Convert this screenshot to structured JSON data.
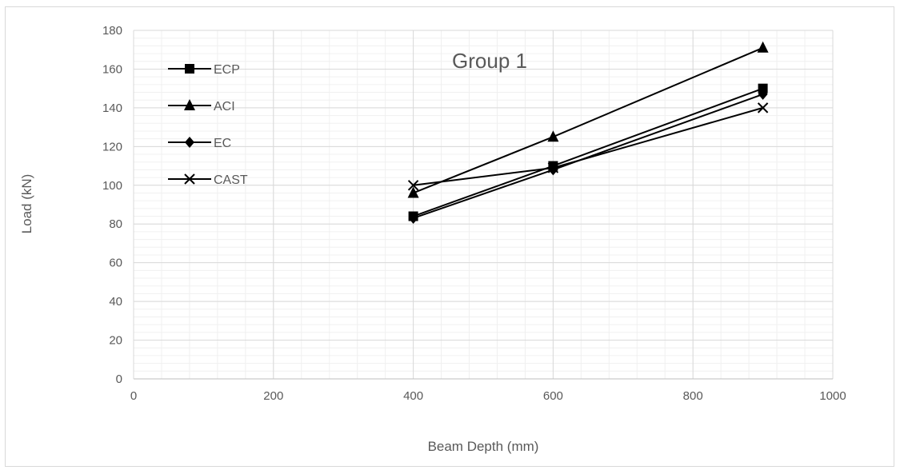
{
  "chart_data": {
    "type": "line",
    "title": "Group 1",
    "xlabel": "Beam Depth (mm)",
    "ylabel": "Load (kN)",
    "xlim": [
      0,
      1000
    ],
    "ylim": [
      0,
      180
    ],
    "xticks": [
      0,
      200,
      400,
      600,
      800,
      1000
    ],
    "yticks": [
      0,
      20,
      40,
      60,
      80,
      100,
      120,
      140,
      160,
      180
    ],
    "major_grid": true,
    "minor_grid": true,
    "legend_position": "top-left",
    "line_color": "#000000",
    "series": [
      {
        "name": "ECP",
        "marker": "square",
        "x": [
          400,
          600,
          900
        ],
        "y": [
          84,
          110,
          150
        ]
      },
      {
        "name": "ACI",
        "marker": "triangle",
        "x": [
          400,
          600,
          900
        ],
        "y": [
          96,
          125,
          171
        ]
      },
      {
        "name": "EC",
        "marker": "diamond",
        "x": [
          400,
          600,
          900
        ],
        "y": [
          83,
          108,
          147
        ]
      },
      {
        "name": "CAST",
        "marker": "x",
        "x": [
          400,
          600,
          900
        ],
        "y": [
          100,
          109,
          140
        ]
      }
    ]
  }
}
